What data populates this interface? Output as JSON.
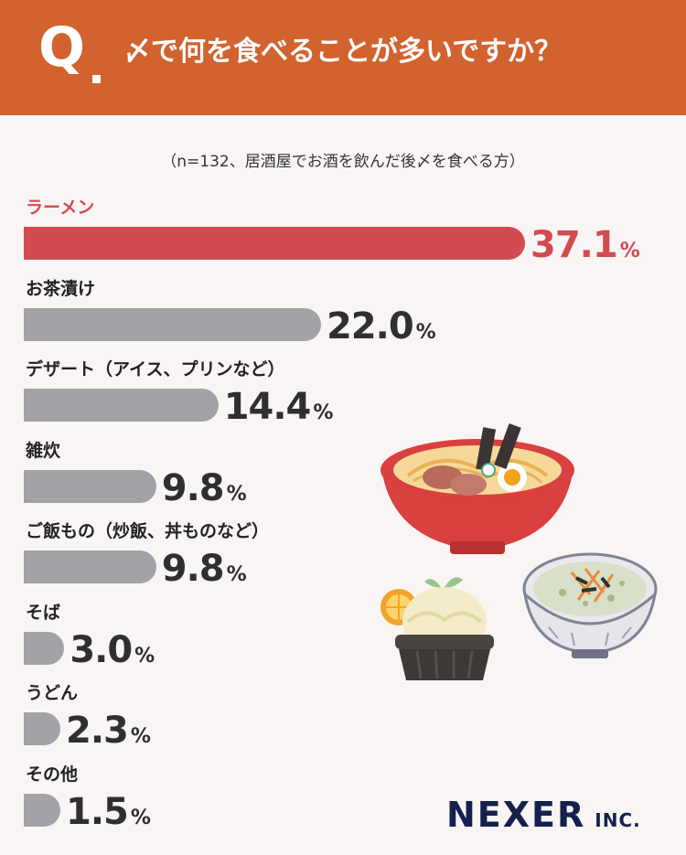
{
  "header": {
    "q_mark": "Q",
    "question": "〆で何を食べることが多いですか？"
  },
  "note": "（n=132、居酒屋でお酒を飲んだ後〆を食べる方）",
  "colors": {
    "header": "#d2622e",
    "highlight": "#d24b50",
    "bar": "#a2a2a7",
    "background": "#faf5f5"
  },
  "logo": {
    "name": "NEXER",
    "suffix": "INC."
  },
  "chart_data": {
    "type": "bar",
    "orientation": "horizontal",
    "unit": "%",
    "categories": [
      "ラーメン",
      "お茶漬け",
      "デザート（アイス、プリンなど）",
      "雑炊",
      "ご飯もの（炒飯、丼ものなど）",
      "そば",
      "うどん",
      "その他"
    ],
    "values": [
      37.1,
      22.0,
      14.4,
      9.8,
      9.8,
      3.0,
      2.3,
      1.5
    ],
    "labels": [
      "37.1",
      "22.0",
      "14.4",
      "9.8",
      "9.8",
      "3.0",
      "2.3",
      "1.5"
    ],
    "highlight_index": 0
  }
}
